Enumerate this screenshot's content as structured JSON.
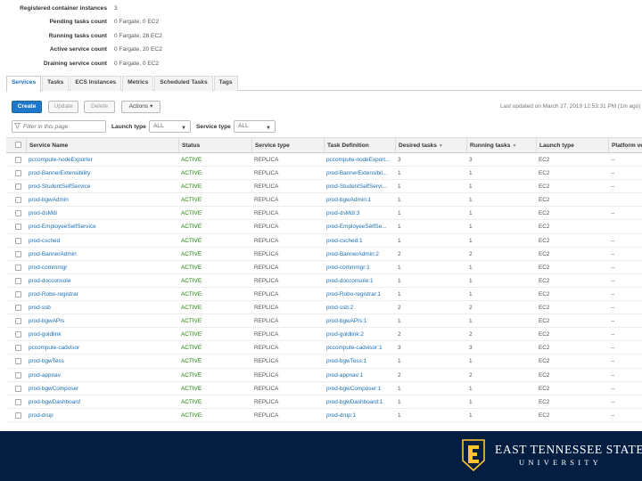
{
  "summary": [
    {
      "label": "Registered container instances",
      "value": "3"
    },
    {
      "label": "Pending tasks count",
      "value": "0 Fargate, 0 EC2"
    },
    {
      "label": "Running tasks count",
      "value": "0 Fargate, 28 EC2"
    },
    {
      "label": "Active service count",
      "value": "0 Fargate, 20 EC2"
    },
    {
      "label": "Draining service count",
      "value": "0 Fargate, 0 EC2"
    }
  ],
  "tabs": [
    {
      "label": "Services",
      "active": true
    },
    {
      "label": "Tasks",
      "active": false
    },
    {
      "label": "ECS Instances",
      "active": false
    },
    {
      "label": "Metrics",
      "active": false
    },
    {
      "label": "Scheduled Tasks",
      "active": false
    },
    {
      "label": "Tags",
      "active": false
    }
  ],
  "toolbar": {
    "create_label": "Create",
    "update_label": "Update",
    "delete_label": "Delete",
    "actions_label": "Actions",
    "last_updated": "Last updated on March 27, 2019 12:53:31 PM (1m ago)"
  },
  "filters": {
    "search_placeholder": "Filter in this page",
    "launch_type_label": "Launch type",
    "launch_type_value": "ALL",
    "service_type_label": "Service type",
    "service_type_value": "ALL"
  },
  "table": {
    "columns": [
      "Service Name",
      "Status",
      "Service type",
      "Task Definition",
      "Desired tasks",
      "Running tasks",
      "Launch type",
      "Platform version"
    ],
    "rows": [
      [
        "pccompute-nodeExporter",
        "ACTIVE",
        "REPLICA",
        "pccompute-nodeExport...",
        "3",
        "3",
        "EC2",
        "--"
      ],
      [
        "prod-BannerExtensibility",
        "ACTIVE",
        "REPLICA",
        "prod-BannerExtensibil...",
        "1",
        "1",
        "EC2",
        "--"
      ],
      [
        "prod-StudentSelfService",
        "ACTIVE",
        "REPLICA",
        "prod-StudentSelfServi...",
        "1",
        "1",
        "EC2",
        "--"
      ],
      [
        "prod-bgwAdmin",
        "ACTIVE",
        "REPLICA",
        "prod-bgwAdmin:1",
        "1",
        "1",
        "EC2",
        ""
      ],
      [
        "prod-dsMdi",
        "ACTIVE",
        "REPLICA",
        "prod-dsMdi:3",
        "1",
        "1",
        "EC2",
        "--"
      ],
      [
        "prod-EmployeeSelfService",
        "ACTIVE",
        "REPLICA",
        "prod-EmployeeSelfSe...",
        "1",
        "1",
        "EC2",
        ""
      ],
      [
        "prod-csched",
        "ACTIVE",
        "REPLICA",
        "prod-csched:1",
        "1",
        "1",
        "EC2",
        "--"
      ],
      [
        "prod-BannerAdmin",
        "ACTIVE",
        "REPLICA",
        "prod-BannerAdmin:2",
        "2",
        "2",
        "EC2",
        "--"
      ],
      [
        "prod-commmgr",
        "ACTIVE",
        "REPLICA",
        "prod-commmgr:1",
        "1",
        "1",
        "EC2",
        "--"
      ],
      [
        "prod-docconsole",
        "ACTIVE",
        "REPLICA",
        "prod-docconsole:1",
        "1",
        "1",
        "EC2",
        "--"
      ],
      [
        "prod-Robo-registrar",
        "ACTIVE",
        "REPLICA",
        "prod-Robo-registrar:1",
        "1",
        "1",
        "EC2",
        "--"
      ],
      [
        "prod-ssb",
        "ACTIVE",
        "REPLICA",
        "prod-ssb:2",
        "2",
        "2",
        "EC2",
        "--"
      ],
      [
        "prod-bgwAPIs",
        "ACTIVE",
        "REPLICA",
        "prod-bgwAPIs:1",
        "1",
        "1",
        "EC2",
        "--"
      ],
      [
        "prod-goldlink",
        "ACTIVE",
        "REPLICA",
        "prod-goldlink:2",
        "2",
        "2",
        "EC2",
        "--"
      ],
      [
        "pccompute-cadvisor",
        "ACTIVE",
        "REPLICA",
        "pccompute-cadvisor:1",
        "3",
        "3",
        "EC2",
        "--"
      ],
      [
        "prod-bgwTess",
        "ACTIVE",
        "REPLICA",
        "prod-bgwTess:1",
        "1",
        "1",
        "EC2",
        "--"
      ],
      [
        "prod-appnav",
        "ACTIVE",
        "REPLICA",
        "prod-appnav:1",
        "2",
        "2",
        "EC2",
        "--"
      ],
      [
        "prod-bgwComposer",
        "ACTIVE",
        "REPLICA",
        "prod-bgwComposer:1",
        "1",
        "1",
        "EC2",
        "--"
      ],
      [
        "prod-bgwDashboard",
        "ACTIVE",
        "REPLICA",
        "prod-bgwDashboard:1",
        "1",
        "1",
        "EC2",
        "--"
      ],
      [
        "prod-drup",
        "ACTIVE",
        "REPLICA",
        "prod-drup:1",
        "1",
        "1",
        "EC2",
        "--"
      ]
    ]
  },
  "footer": {
    "brand_line1": "EAST TENNESSEE STATE",
    "brand_line2": "UNIVERSITY",
    "logo_icon": "etsu-e-shield-icon",
    "bg_color": "#041e42",
    "accent_color": "#ffc72c"
  },
  "colors": {
    "link": "#1a6fb5",
    "status_active": "#1d8102",
    "primary_button": "#1f78c8"
  }
}
